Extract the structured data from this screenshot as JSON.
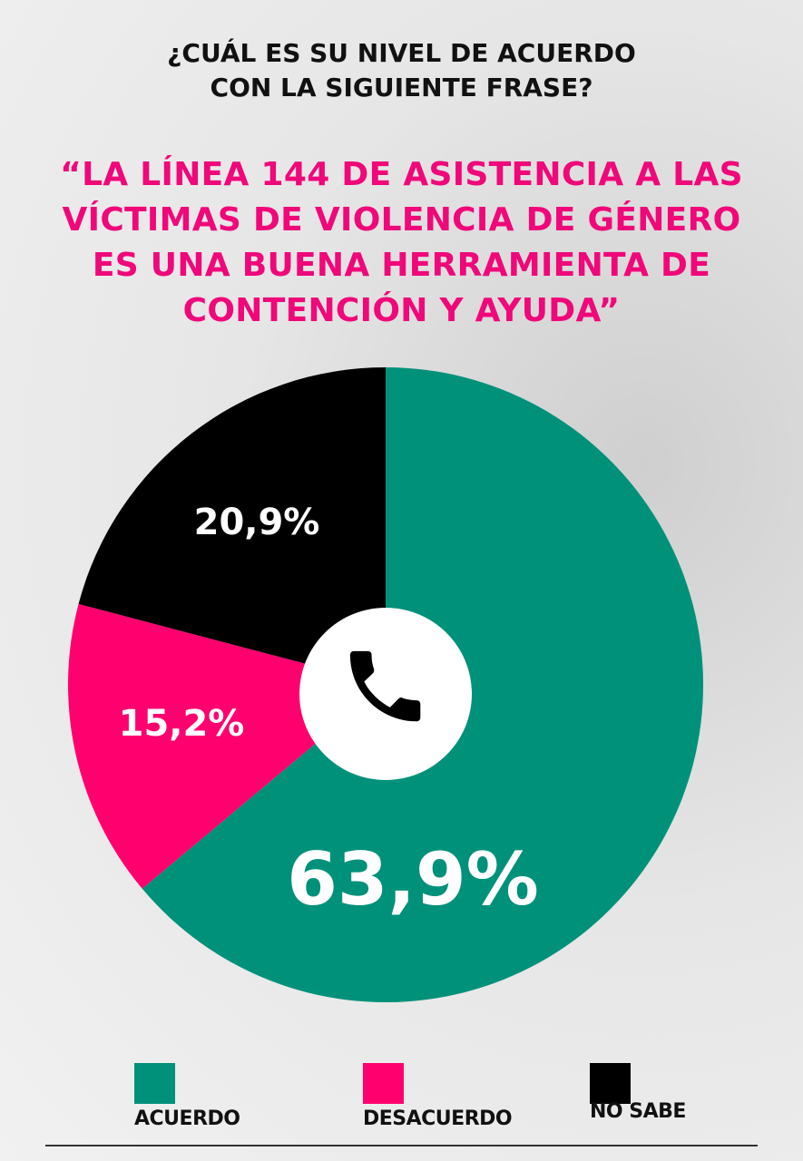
{
  "question": [
    "¿CUÁL ES SU NIVEL DE ACUERDO",
    "CON LA SIGUIENTE FRASE?"
  ],
  "statement": [
    "“LA LÍNEA 144 DE ASISTENCIA A LAS",
    "VÍCTIMAS DE VIOLENCIA DE GÉNERO",
    "ES UNA BUENA HERRAMIENTA DE",
    "CONTENCIÓN Y AYUDA”"
  ],
  "center_icon": "phone-icon",
  "chart_data": {
    "type": "pie",
    "start": "top",
    "direction": "clockwise",
    "donut_center": true,
    "legend_position": "bottom",
    "slices": [
      {
        "name": "ACUERDO",
        "value": 63.9,
        "label": "63,9%",
        "color": "#00917a"
      },
      {
        "name": "DESACUERDO",
        "value": 15.2,
        "label": "15,2%",
        "color": "#ff006e"
      },
      {
        "name": "NO SABE",
        "value": 20.9,
        "label": "20,9%",
        "color": "#000000"
      }
    ]
  }
}
